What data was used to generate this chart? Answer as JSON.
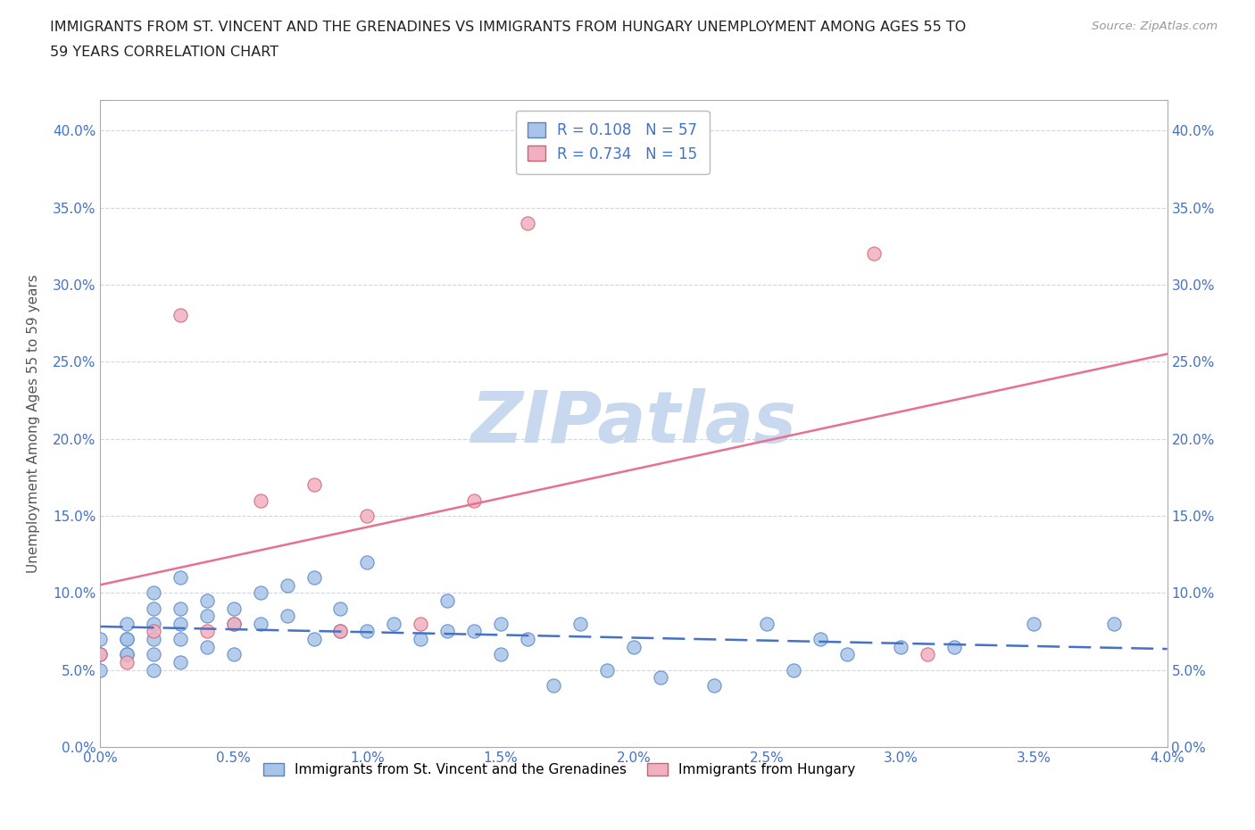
{
  "title_line1": "IMMIGRANTS FROM ST. VINCENT AND THE GRENADINES VS IMMIGRANTS FROM HUNGARY UNEMPLOYMENT AMONG AGES 55 TO",
  "title_line2": "59 YEARS CORRELATION CHART",
  "source_text": "Source: ZipAtlas.com",
  "ylabel": "Unemployment Among Ages 55 to 59 years",
  "legend_bottom_label1": "Immigrants from St. Vincent and the Grenadines",
  "legend_bottom_label2": "Immigrants from Hungary",
  "r1": 0.108,
  "n1": 57,
  "r2": 0.734,
  "n2": 15,
  "color_blue_fill": "#a8c4e8",
  "color_blue_edge": "#5585c8",
  "color_pink_fill": "#f0b0c0",
  "color_pink_edge": "#d06070",
  "color_blue_line": "#4472c4",
  "color_pink_line": "#e87090",
  "color_legend_text": "#4472c4",
  "watermark_color": "#c8d8ee",
  "xlim": [
    0.0,
    0.04
  ],
  "ylim": [
    0.0,
    0.42
  ],
  "xticks": [
    0.0,
    0.005,
    0.01,
    0.015,
    0.02,
    0.025,
    0.03,
    0.035,
    0.04
  ],
  "yticks": [
    0.0,
    0.05,
    0.1,
    0.15,
    0.2,
    0.25,
    0.3,
    0.35,
    0.4
  ],
  "blue_x": [
    0.0,
    0.0,
    0.0,
    0.001,
    0.001,
    0.001,
    0.001,
    0.001,
    0.002,
    0.002,
    0.002,
    0.002,
    0.002,
    0.002,
    0.003,
    0.003,
    0.003,
    0.003,
    0.003,
    0.004,
    0.004,
    0.004,
    0.005,
    0.005,
    0.005,
    0.006,
    0.006,
    0.007,
    0.007,
    0.008,
    0.008,
    0.009,
    0.009,
    0.01,
    0.01,
    0.011,
    0.012,
    0.013,
    0.013,
    0.014,
    0.015,
    0.015,
    0.016,
    0.017,
    0.018,
    0.019,
    0.02,
    0.021,
    0.023,
    0.025,
    0.026,
    0.027,
    0.028,
    0.03,
    0.032,
    0.035,
    0.038
  ],
  "blue_y": [
    0.05,
    0.06,
    0.07,
    0.06,
    0.07,
    0.08,
    0.07,
    0.06,
    0.09,
    0.1,
    0.08,
    0.07,
    0.06,
    0.05,
    0.11,
    0.09,
    0.08,
    0.07,
    0.055,
    0.095,
    0.085,
    0.065,
    0.09,
    0.08,
    0.06,
    0.1,
    0.08,
    0.105,
    0.085,
    0.11,
    0.07,
    0.09,
    0.075,
    0.12,
    0.075,
    0.08,
    0.07,
    0.095,
    0.075,
    0.075,
    0.08,
    0.06,
    0.07,
    0.04,
    0.08,
    0.05,
    0.065,
    0.045,
    0.04,
    0.08,
    0.05,
    0.07,
    0.06,
    0.065,
    0.065,
    0.08,
    0.08
  ],
  "pink_x": [
    0.0,
    0.001,
    0.002,
    0.003,
    0.004,
    0.005,
    0.006,
    0.008,
    0.009,
    0.01,
    0.012,
    0.014,
    0.016,
    0.029,
    0.031
  ],
  "pink_y": [
    0.06,
    0.055,
    0.075,
    0.28,
    0.075,
    0.08,
    0.16,
    0.17,
    0.075,
    0.15,
    0.08,
    0.16,
    0.34,
    0.32,
    0.06
  ]
}
